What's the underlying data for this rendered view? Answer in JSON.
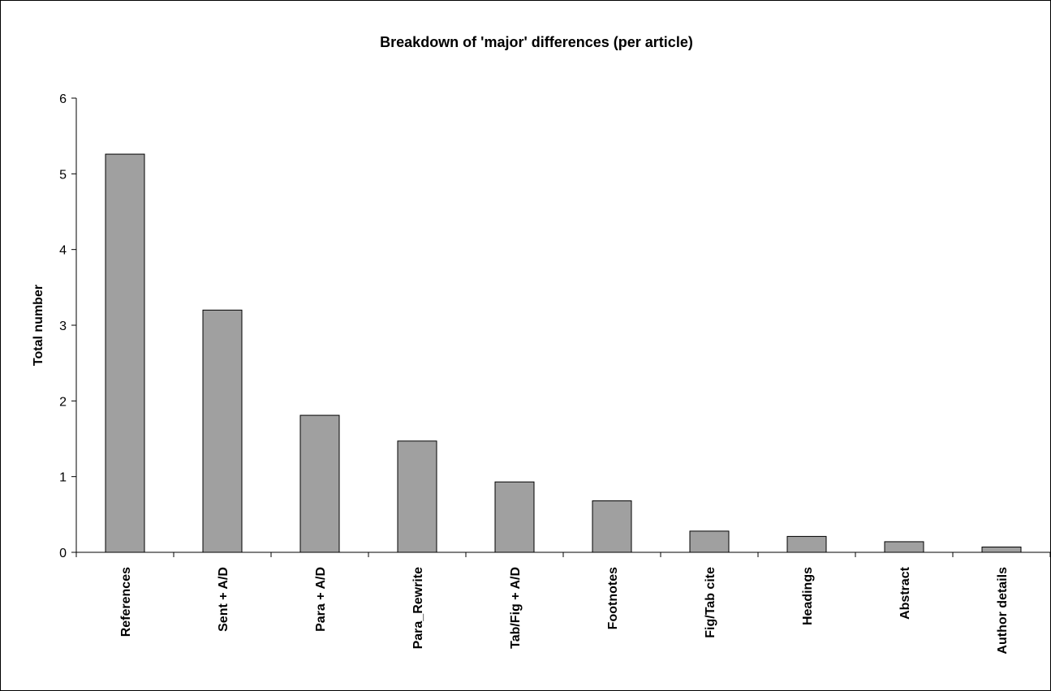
{
  "chart_data": {
    "type": "bar",
    "title": "Breakdown of 'major' differences (per article)",
    "xlabel": "",
    "ylabel": "Total number",
    "categories": [
      "References",
      "Sent + A/D",
      "Para + A/D",
      "Para_Rewrite",
      "Tab/Fig + A/D",
      "Footnotes",
      "Fig/Tab cite",
      "Headings",
      "Abstract",
      "Author details"
    ],
    "values": [
      5.26,
      3.2,
      1.81,
      1.47,
      0.93,
      0.68,
      0.28,
      0.21,
      0.14,
      0.07
    ],
    "ylim": [
      0,
      6
    ],
    "yticks": [
      "0",
      "1",
      "2",
      "3",
      "4",
      "5",
      "6"
    ],
    "grid": false,
    "legend": "none",
    "colors": {
      "bar": "#a0a0a0",
      "border": "#000000",
      "background": "#ffffff"
    }
  }
}
